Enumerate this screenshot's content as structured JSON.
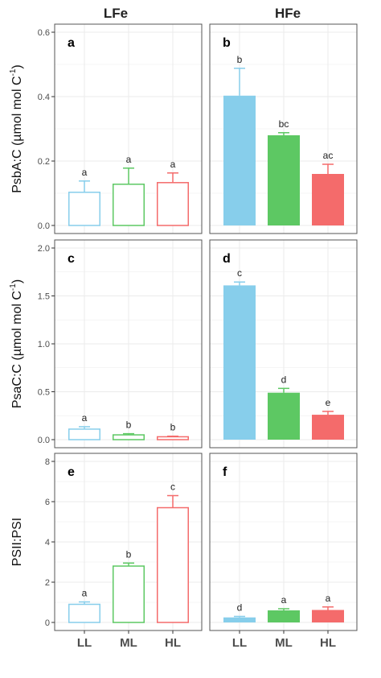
{
  "facets": {
    "columns": [
      "LFe",
      "HFe"
    ]
  },
  "colors": {
    "LL": "#87CEEB",
    "ML": "#5DC863",
    "HL": "#F46B6B",
    "panel_border": "#555555",
    "grid": "#EBEBEB"
  },
  "chart_data": [
    {
      "type": "bar",
      "panel": "a",
      "column": "LFe",
      "ylabel": "PsbA:C (µmol mol C",
      "ylabel_sup": "-1",
      "ylabel_close": ")",
      "ylim": [
        0,
        0.6
      ],
      "yticks": [
        "0.0",
        "0.2",
        "0.4",
        "0.6"
      ],
      "ytick_values": [
        0,
        0.2,
        0.4,
        0.6
      ],
      "categories": [
        "LL",
        "ML",
        "HL"
      ],
      "values": [
        0.103,
        0.128,
        0.133
      ],
      "errors": [
        0.035,
        0.05,
        0.03
      ],
      "letters": [
        "a",
        "a",
        "a"
      ],
      "filled": false
    },
    {
      "type": "bar",
      "panel": "b",
      "column": "HFe",
      "ylim": [
        0,
        0.6
      ],
      "categories": [
        "LL",
        "ML",
        "HL"
      ],
      "values": [
        0.403,
        0.28,
        0.16
      ],
      "errors": [
        0.085,
        0.008,
        0.03
      ],
      "letters": [
        "b",
        "bc",
        "ac"
      ],
      "filled": true
    },
    {
      "type": "bar",
      "panel": "c",
      "column": "LFe",
      "ylabel": "PsaC:C (µmol mol C",
      "ylabel_sup": "-1",
      "ylabel_close": ")",
      "ylim": [
        0,
        2.0
      ],
      "yticks": [
        "0.0",
        "0.5",
        "1.0",
        "1.5",
        "2.0"
      ],
      "ytick_values": [
        0,
        0.5,
        1.0,
        1.5,
        2.0
      ],
      "categories": [
        "LL",
        "ML",
        "HL"
      ],
      "values": [
        0.11,
        0.05,
        0.03
      ],
      "errors": [
        0.025,
        0.012,
        0.006
      ],
      "letters": [
        "a",
        "b",
        "b"
      ],
      "filled": false
    },
    {
      "type": "bar",
      "panel": "d",
      "column": "HFe",
      "ylim": [
        0,
        2.0
      ],
      "categories": [
        "LL",
        "ML",
        "HL"
      ],
      "values": [
        1.61,
        0.49,
        0.26
      ],
      "errors": [
        0.035,
        0.045,
        0.035
      ],
      "letters": [
        "c",
        "d",
        "e"
      ],
      "filled": true
    },
    {
      "type": "bar",
      "panel": "e",
      "column": "LFe",
      "ylabel": "PSII:PSI",
      "ylim": [
        0,
        8
      ],
      "yticks": [
        "0",
        "2",
        "4",
        "6",
        "8"
      ],
      "ytick_values": [
        0,
        2,
        4,
        6,
        8
      ],
      "categories": [
        "LL",
        "ML",
        "HL"
      ],
      "values": [
        0.9,
        2.8,
        5.7
      ],
      "errors": [
        0.12,
        0.15,
        0.6
      ],
      "letters": [
        "a",
        "b",
        "c"
      ],
      "filled": false
    },
    {
      "type": "bar",
      "panel": "f",
      "column": "HFe",
      "ylim": [
        0,
        8
      ],
      "categories": [
        "LL",
        "ML",
        "HL"
      ],
      "values": [
        0.25,
        0.6,
        0.62
      ],
      "errors": [
        0.05,
        0.08,
        0.15
      ],
      "letters": [
        "d",
        "a",
        "a"
      ],
      "filled": true
    }
  ]
}
